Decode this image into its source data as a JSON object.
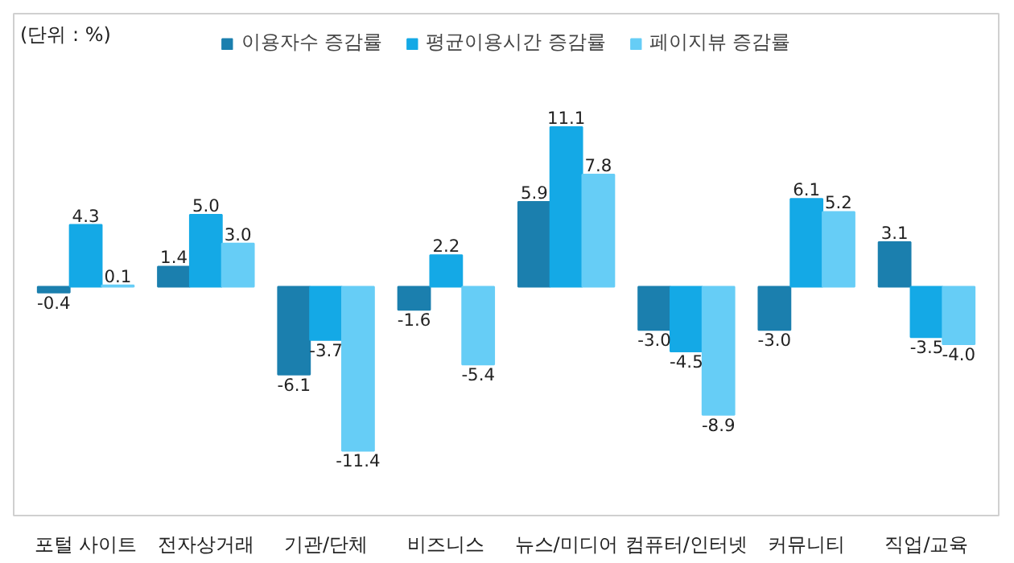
{
  "chart_data": {
    "type": "bar",
    "categories": [
      "포털 사이트",
      "전자상거래",
      "기관/단체",
      "비즈니스",
      "뉴스/미디어",
      "컴퓨터/인터넷",
      "커뮤니티",
      "직업/교육"
    ],
    "series": [
      {
        "name": "이용자수 증감률",
        "color": "#1b7fae",
        "values": [
          -0.4,
          1.4,
          -6.1,
          -1.6,
          5.9,
          -3.0,
          -3.0,
          3.1
        ],
        "value_labels": [
          "-0.4",
          "1.4",
          "-6.1",
          "-1.6",
          "5.9",
          "-3.0",
          "-3.0",
          "3.1"
        ]
      },
      {
        "name": "평균이용시간 증감률",
        "color": "#14a9e6",
        "values": [
          4.3,
          5.0,
          -3.7,
          2.2,
          11.1,
          -4.5,
          6.1,
          -3.5
        ],
        "value_labels": [
          "4.3",
          "5.0",
          "-3.7",
          "2.2",
          "11.1",
          "-4.5",
          "6.1",
          "-3.5"
        ]
      },
      {
        "name": "페이지뷰 증감률",
        "color": "#66cdf6",
        "values": [
          0.1,
          3.0,
          -11.4,
          -5.4,
          7.8,
          -8.9,
          5.2,
          -4.0
        ],
        "value_labels": [
          "0.1",
          "3.0",
          "-11.4",
          "-5.4",
          "7.8",
          "-8.9",
          "5.2",
          "-4.0"
        ]
      }
    ],
    "legend": "top",
    "grid": false,
    "annotations": [
      "(단위 : %)"
    ]
  }
}
